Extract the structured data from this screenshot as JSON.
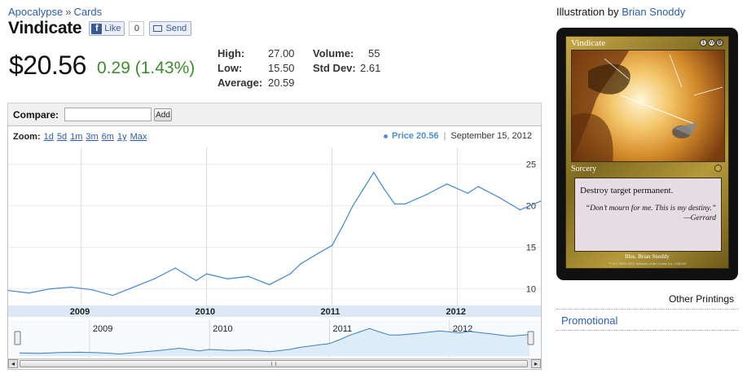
{
  "breadcrumb": {
    "root": "Apocalypse",
    "separator": "»",
    "current": "Cards"
  },
  "title": "Vindicate",
  "facebook": {
    "like_label": "Like",
    "like_icon": "f",
    "like_count": "0",
    "send_label": "Send"
  },
  "price": {
    "value": "$20.56",
    "change": "0.29 (1.43%)"
  },
  "stats": {
    "high_label": "High:",
    "high": "27.00",
    "low_label": "Low:",
    "low": "15.50",
    "average_label": "Average:",
    "average": "20.59",
    "volume_label": "Volume:",
    "volume": "55",
    "stddev_label": "Std Dev:",
    "stddev": "2.61"
  },
  "compare": {
    "label": "Compare:",
    "value": "",
    "add_label": "Add"
  },
  "zoom": {
    "label": "Zoom:",
    "options": [
      "1d",
      "5d",
      "1m",
      "3m",
      "6m",
      "1y",
      "Max"
    ]
  },
  "legend": {
    "series_label": "Price 20.56",
    "separator": "|",
    "date": "September 15, 2012"
  },
  "chart_data": {
    "type": "line",
    "x_start": "2008-06",
    "x_end": "2012-09",
    "ylim": [
      8,
      27
    ],
    "y_ticks": [
      10,
      15,
      20,
      25
    ],
    "x_ticks": [
      "2009",
      "2010",
      "2011",
      "2012"
    ],
    "navigator_x_ticks": [
      "2009",
      "2010",
      "2011",
      "2012"
    ],
    "color": "#4d8fd0",
    "series": [
      {
        "x": [
          "2008-06",
          "2008-08",
          "2008-10",
          "2008-12",
          "2009-02",
          "2009-04",
          "2009-06",
          "2009-08",
          "2009-10",
          "2009-12",
          "2010-01",
          "2010-03",
          "2010-05",
          "2010-07",
          "2010-09",
          "2010-10",
          "2010-12",
          "2011-01",
          "2011-02",
          "2011-03",
          "2011-04",
          "2011-05",
          "2011-06",
          "2011-07",
          "2011-08",
          "2011-10",
          "2011-12",
          "2012-02",
          "2012-03",
          "2012-05",
          "2012-07",
          "2012-09"
        ],
        "y": [
          9.8,
          9.5,
          10.0,
          10.2,
          9.9,
          9.2,
          10.2,
          11.2,
          12.5,
          11.0,
          11.8,
          11.2,
          11.5,
          10.5,
          11.8,
          13.0,
          14.5,
          15.2,
          17.5,
          20.0,
          22.0,
          24.0,
          22.0,
          20.2,
          20.2,
          21.3,
          22.6,
          21.5,
          22.3,
          21.0,
          19.5,
          20.56
        ]
      }
    ]
  },
  "scrollbar": {
    "left_arrow": "◂",
    "right_arrow": "▸"
  },
  "card": {
    "illustration_label": "Illustration by",
    "illustrator": "Brian Snoddy",
    "name": "Vindicate",
    "mana": [
      "1",
      "W",
      "B"
    ],
    "type_line": "Sorcery",
    "rules": "Destroy target permanent.",
    "flavor": "“Don’t mourn for me. This is my destiny.”",
    "flavor_attribution": "—Gerrard",
    "artist_line": "Illus. Brian Snoddy",
    "copyright": "™ & © 1993–2001 Wizards of the Coast, Inc. 128/143"
  },
  "other_printings": {
    "heading": "Other Printings",
    "items": [
      "Promotional"
    ]
  }
}
